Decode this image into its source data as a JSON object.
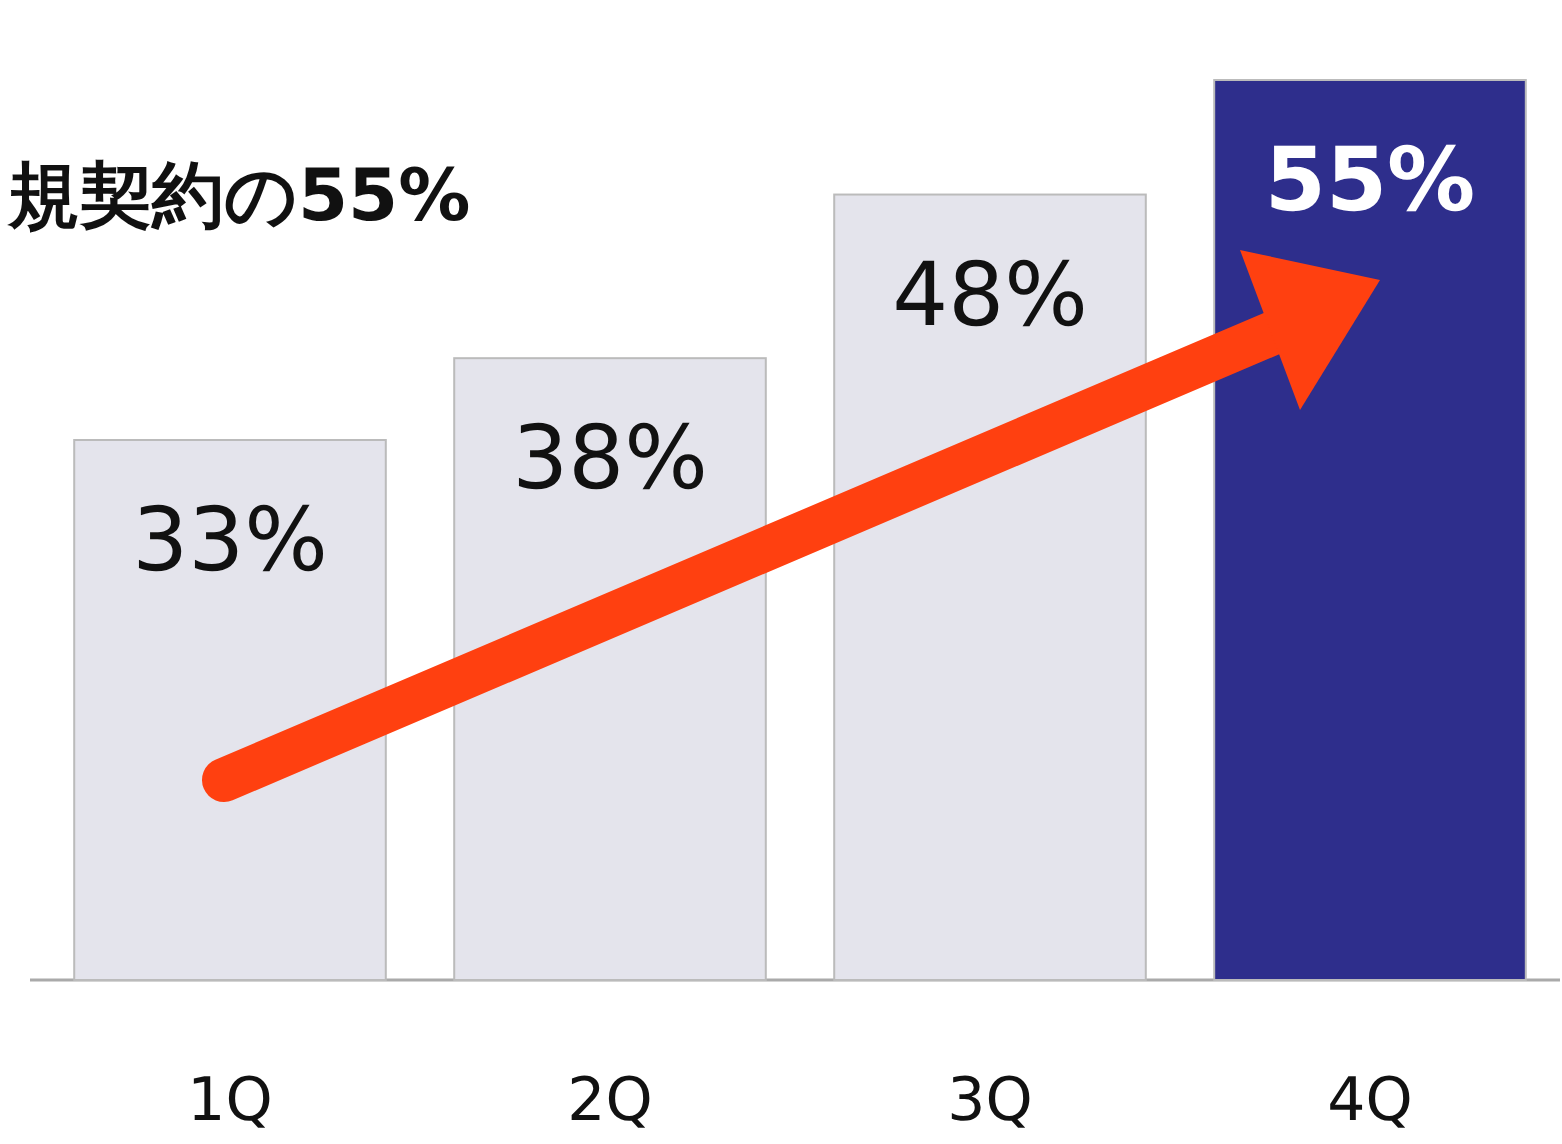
{
  "chart_data": {
    "type": "bar",
    "title": "規契約の55%",
    "categories": [
      "1Q",
      "2Q",
      "3Q",
      "4Q"
    ],
    "values": [
      33,
      38,
      48,
      55
    ],
    "colors": [
      "#e4e4ec",
      "#e4e4ec",
      "#e4e4ec",
      "#2e2e8c"
    ],
    "value_labels": [
      "33%",
      "38%",
      "48%",
      "55%"
    ]
  }
}
